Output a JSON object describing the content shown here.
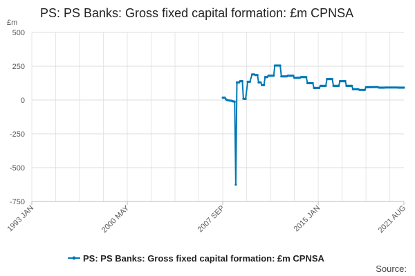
{
  "chart_data": {
    "type": "line",
    "title": "PS: PS Banks: Gross fixed capital formation: £m CPNSA",
    "y_unit": "£m",
    "ylim": [
      -750,
      500
    ],
    "yticks": [
      500,
      250,
      0,
      -250,
      -500,
      -750
    ],
    "ytick_labels": [
      "500",
      "250",
      "0",
      "-250",
      "-500",
      "-750"
    ],
    "xlim": [
      1993.0,
      2021.583
    ],
    "xticks": [
      {
        "value": 1993.0,
        "label": "1993 JAN"
      },
      {
        "value": 2000.333,
        "label": "2000 MAY"
      },
      {
        "value": 2007.667,
        "label": "2007 SEP"
      },
      {
        "value": 2015.0,
        "label": "2015 JAN"
      },
      {
        "value": 2021.583,
        "label": "2021 AUG"
      }
    ],
    "x_grid_step_years": 1.8333,
    "series": [
      {
        "name": "PS: PS Banks: Gross fixed capital formation: £m CPNSA",
        "color": "#0077b6",
        "points": [
          [
            2007.67,
            18
          ],
          [
            2007.75,
            18
          ],
          [
            2007.83,
            18
          ],
          [
            2007.92,
            5
          ],
          [
            2008.0,
            0
          ],
          [
            2008.08,
            -2
          ],
          [
            2008.17,
            -3
          ],
          [
            2008.25,
            -5
          ],
          [
            2008.33,
            -5
          ],
          [
            2008.42,
            -8
          ],
          [
            2008.5,
            -10
          ],
          [
            2008.58,
            -12
          ],
          [
            2008.67,
            -625
          ],
          [
            2008.75,
            130
          ],
          [
            2008.83,
            130
          ],
          [
            2008.92,
            130
          ],
          [
            2009.0,
            140
          ],
          [
            2009.08,
            140
          ],
          [
            2009.17,
            140
          ],
          [
            2009.25,
            10
          ],
          [
            2009.33,
            8
          ],
          [
            2009.42,
            8
          ],
          [
            2009.58,
            135
          ],
          [
            2009.67,
            135
          ],
          [
            2009.75,
            135
          ],
          [
            2009.92,
            190
          ],
          [
            2010.0,
            190
          ],
          [
            2010.08,
            190
          ],
          [
            2010.17,
            185
          ],
          [
            2010.25,
            185
          ],
          [
            2010.33,
            185
          ],
          [
            2010.42,
            130
          ],
          [
            2010.5,
            130
          ],
          [
            2010.58,
            130
          ],
          [
            2010.67,
            110
          ],
          [
            2010.75,
            110
          ],
          [
            2010.83,
            110
          ],
          [
            2010.92,
            170
          ],
          [
            2011.0,
            170
          ],
          [
            2011.08,
            170
          ],
          [
            2011.17,
            180
          ],
          [
            2011.25,
            180
          ],
          [
            2011.33,
            180
          ],
          [
            2011.42,
            180
          ],
          [
            2011.5,
            180
          ],
          [
            2011.58,
            180
          ],
          [
            2011.67,
            255
          ],
          [
            2011.75,
            255
          ],
          [
            2011.83,
            255
          ],
          [
            2011.92,
            255
          ],
          [
            2012.0,
            255
          ],
          [
            2012.08,
            255
          ],
          [
            2012.17,
            175
          ],
          [
            2012.25,
            175
          ],
          [
            2012.33,
            175
          ],
          [
            2012.42,
            175
          ],
          [
            2012.5,
            175
          ],
          [
            2012.58,
            175
          ],
          [
            2012.67,
            180
          ],
          [
            2012.75,
            180
          ],
          [
            2012.83,
            180
          ],
          [
            2012.92,
            180
          ],
          [
            2013.0,
            180
          ],
          [
            2013.08,
            180
          ],
          [
            2013.17,
            165
          ],
          [
            2013.25,
            165
          ],
          [
            2013.33,
            165
          ],
          [
            2013.42,
            165
          ],
          [
            2013.5,
            165
          ],
          [
            2013.58,
            165
          ],
          [
            2013.67,
            170
          ],
          [
            2013.75,
            170
          ],
          [
            2013.83,
            170
          ],
          [
            2013.92,
            170
          ],
          [
            2014.0,
            170
          ],
          [
            2014.08,
            170
          ],
          [
            2014.17,
            125
          ],
          [
            2014.25,
            125
          ],
          [
            2014.33,
            125
          ],
          [
            2014.42,
            125
          ],
          [
            2014.5,
            125
          ],
          [
            2014.58,
            125
          ],
          [
            2014.67,
            90
          ],
          [
            2014.75,
            90
          ],
          [
            2014.83,
            90
          ],
          [
            2014.92,
            90
          ],
          [
            2015.0,
            90
          ],
          [
            2015.08,
            90
          ],
          [
            2015.17,
            105
          ],
          [
            2015.25,
            105
          ],
          [
            2015.33,
            105
          ],
          [
            2015.42,
            105
          ],
          [
            2015.5,
            105
          ],
          [
            2015.58,
            105
          ],
          [
            2015.67,
            155
          ],
          [
            2015.75,
            155
          ],
          [
            2015.83,
            155
          ],
          [
            2015.92,
            155
          ],
          [
            2016.0,
            155
          ],
          [
            2016.08,
            155
          ],
          [
            2016.17,
            105
          ],
          [
            2016.25,
            105
          ],
          [
            2016.33,
            105
          ],
          [
            2016.42,
            105
          ],
          [
            2016.5,
            105
          ],
          [
            2016.58,
            105
          ],
          [
            2016.67,
            140
          ],
          [
            2016.75,
            140
          ],
          [
            2016.83,
            140
          ],
          [
            2016.92,
            140
          ],
          [
            2017.0,
            140
          ],
          [
            2017.08,
            140
          ],
          [
            2017.17,
            105
          ],
          [
            2017.25,
            105
          ],
          [
            2017.33,
            105
          ],
          [
            2017.42,
            105
          ],
          [
            2017.5,
            105
          ],
          [
            2017.58,
            105
          ],
          [
            2017.67,
            80
          ],
          [
            2017.75,
            80
          ],
          [
            2017.83,
            80
          ],
          [
            2017.92,
            80
          ],
          [
            2018.0,
            80
          ],
          [
            2018.08,
            80
          ],
          [
            2018.17,
            75
          ],
          [
            2018.25,
            75
          ],
          [
            2018.33,
            75
          ],
          [
            2018.42,
            75
          ],
          [
            2018.5,
            75
          ],
          [
            2018.58,
            75
          ],
          [
            2018.67,
            95
          ],
          [
            2018.75,
            95
          ],
          [
            2018.83,
            95
          ],
          [
            2018.92,
            95
          ],
          [
            2019.0,
            95
          ],
          [
            2019.08,
            95
          ],
          [
            2019.17,
            96
          ],
          [
            2019.25,
            96
          ],
          [
            2019.33,
            96
          ],
          [
            2019.42,
            96
          ],
          [
            2019.5,
            96
          ],
          [
            2019.58,
            96
          ],
          [
            2019.67,
            92
          ],
          [
            2019.75,
            92
          ],
          [
            2019.83,
            92
          ],
          [
            2019.92,
            92
          ],
          [
            2020.0,
            92
          ],
          [
            2020.08,
            92
          ],
          [
            2020.17,
            93
          ],
          [
            2020.25,
            93
          ],
          [
            2020.33,
            93
          ],
          [
            2020.42,
            93
          ],
          [
            2020.5,
            93
          ],
          [
            2020.58,
            93
          ],
          [
            2020.67,
            93
          ],
          [
            2020.75,
            93
          ],
          [
            2020.83,
            93
          ],
          [
            2020.92,
            93
          ],
          [
            2021.0,
            93
          ],
          [
            2021.08,
            93
          ],
          [
            2021.17,
            92
          ],
          [
            2021.25,
            92
          ],
          [
            2021.33,
            92
          ],
          [
            2021.42,
            92
          ],
          [
            2021.5,
            92
          ],
          [
            2021.58,
            92
          ]
        ]
      }
    ],
    "legend": {
      "position": "bottom-center"
    },
    "source_label": "Source:"
  }
}
